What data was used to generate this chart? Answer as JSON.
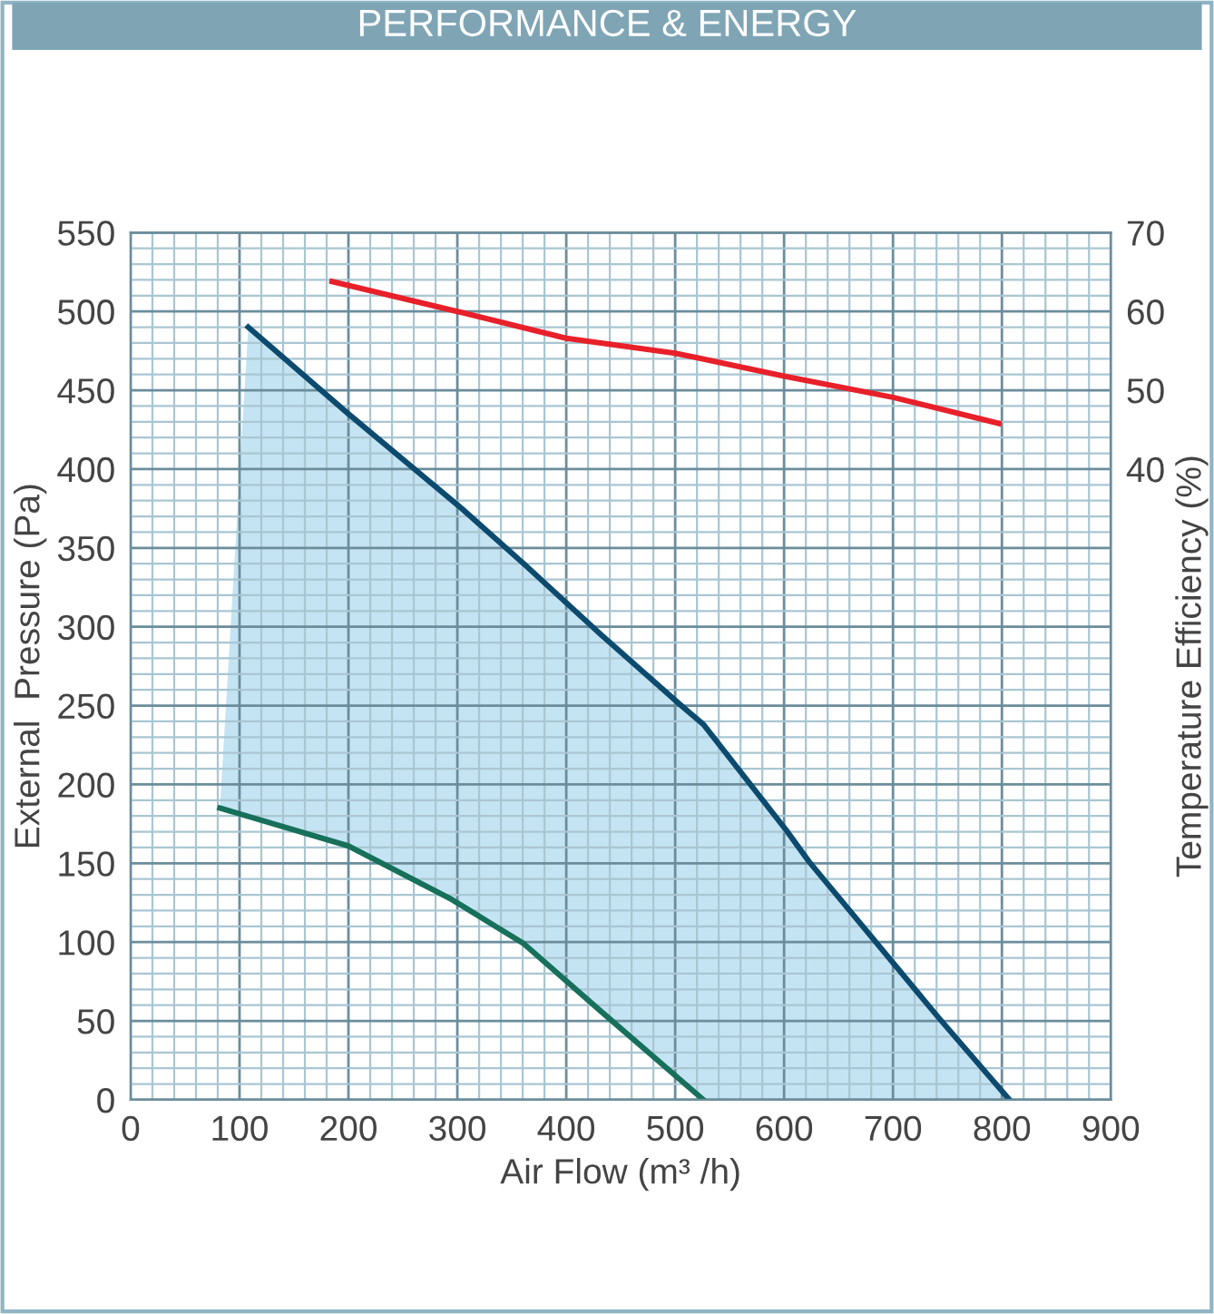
{
  "chart_data": {
    "type": "line",
    "title": "PERFORMANCE & ENERGY",
    "xlabel": "Air Flow (m³ /h)",
    "ylabel": "External  Pressure (Pa)",
    "y2label": "Temperature Efficiency (%)",
    "xlim": [
      0,
      900
    ],
    "xticks": [
      0,
      {
        "value": 20,
        "label": null
      },
      {
        "value": 40,
        "label": null
      },
      {
        "value": 60,
        "label": null
      },
      {
        "value": 80,
        "label": null
      },
      100,
      {
        "value": 120,
        "label": null
      },
      {
        "value": 140,
        "label": null
      },
      {
        "value": 160,
        "label": null
      },
      {
        "value": 180,
        "label": null
      },
      200,
      {
        "value": 220,
        "label": null
      },
      {
        "value": 240,
        "label": null
      },
      {
        "value": 260,
        "label": null
      },
      {
        "value": 280,
        "label": null
      },
      300,
      {
        "value": 320,
        "label": null
      },
      {
        "value": 340,
        "label": null
      },
      {
        "value": 360,
        "label": null
      },
      {
        "value": 380,
        "label": null
      },
      400,
      {
        "value": 420,
        "label": null
      },
      {
        "value": 440,
        "label": null
      },
      {
        "value": 460,
        "label": null
      },
      {
        "value": 480,
        "label": null
      },
      500,
      {
        "value": 520,
        "label": null
      },
      {
        "value": 540,
        "label": null
      },
      {
        "value": 560,
        "label": null
      },
      {
        "value": 580,
        "label": null
      },
      600,
      {
        "value": 620,
        "label": null
      },
      {
        "value": 640,
        "label": null
      },
      {
        "value": 660,
        "label": null
      },
      {
        "value": 680,
        "label": null
      },
      700,
      {
        "value": 720,
        "label": null
      },
      {
        "value": 740,
        "label": null
      },
      {
        "value": 760,
        "label": null
      },
      {
        "value": 780,
        "label": null
      },
      800,
      {
        "value": 820,
        "label": null
      },
      {
        "value": 840,
        "label": null
      },
      {
        "value": 860,
        "label": null
      },
      {
        "value": 880,
        "label": null
      },
      900
    ],
    "ylim": [
      0,
      550
    ],
    "yticks": [
      0,
      {
        "value": 10,
        "label": null
      },
      {
        "value": 20,
        "label": null
      },
      {
        "value": 30,
        "label": null
      },
      {
        "value": 40,
        "label": null
      },
      50,
      {
        "value": 60,
        "label": null
      },
      {
        "value": 70,
        "label": null
      },
      {
        "value": 80,
        "label": null
      },
      {
        "value": 90,
        "label": null
      },
      100,
      {
        "value": 110,
        "label": null
      },
      {
        "value": 120,
        "label": null
      },
      {
        "value": 130,
        "label": null
      },
      {
        "value": 140,
        "label": null
      },
      150,
      {
        "value": 160,
        "label": null
      },
      {
        "value": 170,
        "label": null
      },
      {
        "value": 180,
        "label": null
      },
      {
        "value": 190,
        "label": null
      },
      200,
      {
        "value": 210,
        "label": null
      },
      {
        "value": 220,
        "label": null
      },
      {
        "value": 230,
        "label": null
      },
      {
        "value": 240,
        "label": null
      },
      250,
      {
        "value": 260,
        "label": null
      },
      {
        "value": 270,
        "label": null
      },
      {
        "value": 280,
        "label": null
      },
      {
        "value": 290,
        "label": null
      },
      300,
      {
        "value": 310,
        "label": null
      },
      {
        "value": 320,
        "label": null
      },
      {
        "value": 330,
        "label": null
      },
      {
        "value": 340,
        "label": null
      },
      350,
      {
        "value": 360,
        "label": null
      },
      {
        "value": 370,
        "label": null
      },
      {
        "value": 380,
        "label": null
      },
      {
        "value": 390,
        "label": null
      },
      400,
      {
        "value": 410,
        "label": null
      },
      {
        "value": 420,
        "label": null
      },
      {
        "value": 430,
        "label": null
      },
      {
        "value": 440,
        "label": null
      },
      450,
      {
        "value": 460,
        "label": null
      },
      {
        "value": 470,
        "label": null
      },
      {
        "value": 480,
        "label": null
      },
      {
        "value": 490,
        "label": null
      },
      500,
      {
        "value": 510,
        "label": null
      },
      {
        "value": 520,
        "label": null
      },
      {
        "value": 530,
        "label": null
      },
      {
        "value": 540,
        "label": null
      },
      550
    ],
    "y2lim": [
      -40,
      70
    ],
    "y2ticks": [
      40,
      50,
      60,
      70
    ],
    "grid": true,
    "series": [
      {
        "type": "line",
        "color": "#0c4a6e",
        "x": [
          82,
          108,
          200,
          304,
          361,
          432,
          504,
          526,
          602,
          623,
          742,
          807
        ],
        "values": [
          null,
          490,
          435,
          375,
          340,
          295,
          251,
          238,
          171,
          151,
          52,
          0
        ],
        "upper": [
          185,
          490,
          435,
          375,
          340,
          295,
          251,
          238,
          171,
          151,
          52,
          0
        ],
        "lower": [
          185,
          180,
          161,
          122,
          99,
          56,
          13,
          0,
          0,
          0,
          0,
          0
        ]
      },
      {
        "type": "line",
        "color": "#17705a",
        "x": [
          82,
          200,
          295,
          361,
          432,
          526
        ],
        "values": [
          185,
          161,
          127,
          99,
          56,
          0
        ]
      },
      {
        "type": "line",
        "color": "#e8202a",
        "axis": "y2",
        "x": [
          185,
          300,
          400,
          500,
          600,
          700,
          797
        ],
        "values": [
          63.8,
          60,
          56.6,
          54.7,
          51.8,
          49.1,
          45.8
        ]
      }
    ]
  }
}
